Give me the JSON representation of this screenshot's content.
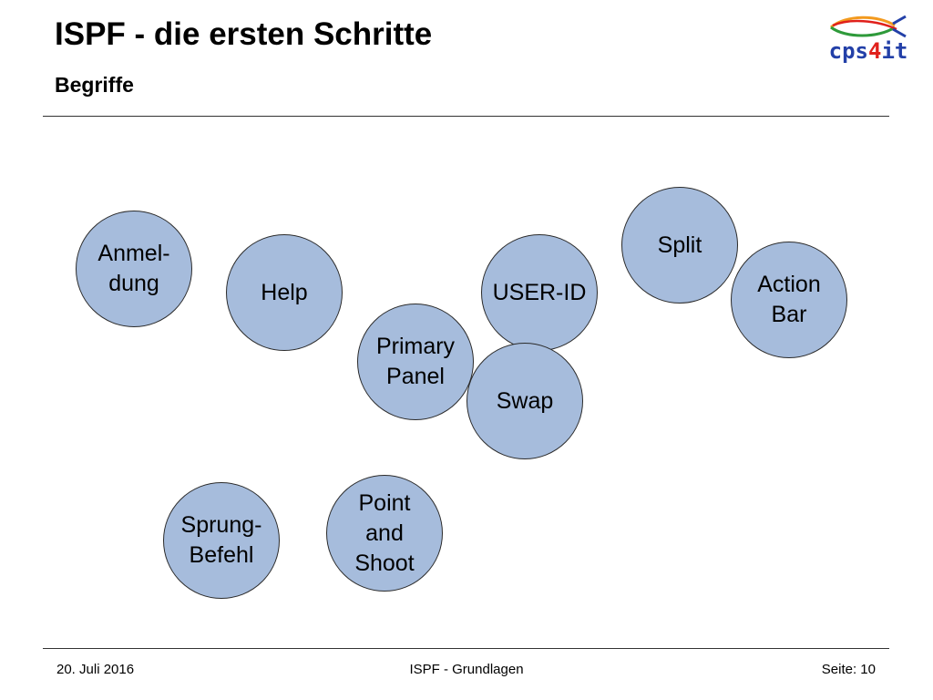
{
  "header": {
    "title": "ISPF - die ersten Schritte",
    "subtitle": "Begriffe"
  },
  "logo": {
    "text_main": "cps",
    "text_digit": "4",
    "text_end": "it",
    "fish_icon": "fish-icon",
    "colors": {
      "blue": "#2340a8",
      "red": "#e0201b",
      "green": "#2e9a3a",
      "orange": "#f39a1e"
    }
  },
  "terms": [
    {
      "id": "anmeldung",
      "label": "Anmel-\ndung"
    },
    {
      "id": "help",
      "label": "Help"
    },
    {
      "id": "user-id",
      "label": "USER-ID"
    },
    {
      "id": "split",
      "label": "Split"
    },
    {
      "id": "action-bar",
      "label": "Action\nBar"
    },
    {
      "id": "primary-panel",
      "label": "Primary\nPanel"
    },
    {
      "id": "swap",
      "label": "Swap"
    },
    {
      "id": "sprung-befehl",
      "label": "Sprung-\nBefehl"
    },
    {
      "id": "point-and-shoot",
      "label": "Point\nand\nShoot"
    }
  ],
  "footer": {
    "date": "20. Juli 2016",
    "topic": "ISPF - Grundlagen",
    "page": "Seite: 10"
  },
  "colors": {
    "bubble_fill": "#a6bcdc",
    "bubble_border": "#2b2b2b"
  }
}
